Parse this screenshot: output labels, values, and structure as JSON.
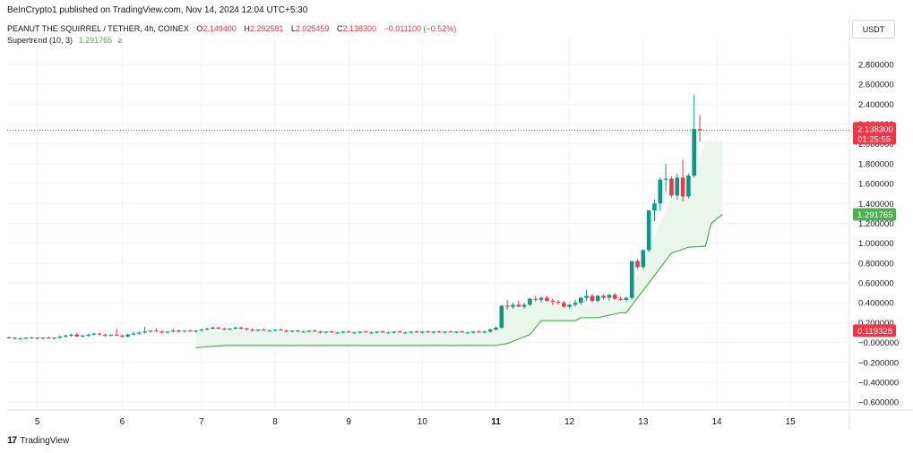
{
  "header": {
    "publish_line": "BeInCrypto1 published on TradingView.com, Nov 14, 2024 12:04 UTC+5:30",
    "symbol": "PEANUT THE SQUIRREL / TETHER, 4h, COINEX",
    "ohlc": [
      {
        "key": "O",
        "value": "2.149400"
      },
      {
        "key": "H",
        "value": "2.292581"
      },
      {
        "key": "L",
        "value": "2.025459"
      },
      {
        "key": "C",
        "value": "2.138300"
      },
      {
        "key": "",
        "value": "−0.011100 (−0.52%)"
      }
    ],
    "indicator_name": "Supertrend (10, 3)",
    "indicator_value": "1.291765",
    "indicator_icon": "visibility-off-icon",
    "currency": "USDT"
  },
  "footer": {
    "brand": "TradingView",
    "logo_text": "17"
  },
  "colors": {
    "up": "#089981",
    "down": "#f23645",
    "supertrend": "#4caf50",
    "supertrend_fill": "#e8f5e9",
    "grid": "#f0f3fa",
    "price_line": "#f23645",
    "low_tag": "#f23645",
    "text": "#131722"
  },
  "chart_data": {
    "type": "candlestick",
    "ylim": [
      -0.68,
      2.98
    ],
    "y_ticks": [
      2.8,
      2.6,
      2.4,
      2.2,
      2.0,
      1.8,
      1.6,
      1.4,
      1.2,
      1.0,
      0.8,
      0.6,
      0.4,
      0.2,
      0.0,
      -0.2,
      -0.4,
      -0.6
    ],
    "y_tick_labels": [
      "2.800000",
      "2.600000",
      "2.400000",
      "2.200000",
      "2.000000",
      "1.800000",
      "1.600000",
      "1.400000",
      "1.200000",
      "1.000000",
      "0.800000",
      "0.600000",
      "0.400000",
      "0.200000",
      "−0.000000",
      "−0.200000",
      "−0.400000",
      "−0.600000"
    ],
    "x_ticks": [
      {
        "label": "5",
        "i": 5,
        "bold": false
      },
      {
        "label": "6",
        "i": 20,
        "bold": false
      },
      {
        "label": "7",
        "i": 34,
        "bold": false
      },
      {
        "label": "8",
        "i": 47,
        "bold": false
      },
      {
        "label": "9",
        "i": 60,
        "bold": false
      },
      {
        "label": "10",
        "i": 73,
        "bold": false
      },
      {
        "label": "11",
        "i": 86,
        "bold": true
      },
      {
        "label": "12",
        "i": 99,
        "bold": false
      },
      {
        "label": "13",
        "i": 112,
        "bold": false
      },
      {
        "label": "14",
        "i": 125,
        "bold": false
      },
      {
        "label": "15",
        "i": 138,
        "bold": false
      }
    ],
    "candles": [
      [
        0.05,
        0.06,
        0.04,
        0.05
      ],
      [
        0.05,
        0.05,
        0.03,
        0.04
      ],
      [
        0.04,
        0.05,
        0.03,
        0.04
      ],
      [
        0.04,
        0.05,
        0.03,
        0.05
      ],
      [
        0.05,
        0.06,
        0.04,
        0.05
      ],
      [
        0.05,
        0.05,
        0.03,
        0.04
      ],
      [
        0.04,
        0.05,
        0.03,
        0.05
      ],
      [
        0.05,
        0.06,
        0.04,
        0.04
      ],
      [
        0.04,
        0.05,
        0.03,
        0.05
      ],
      [
        0.05,
        0.07,
        0.04,
        0.06
      ],
      [
        0.06,
        0.08,
        0.05,
        0.07
      ],
      [
        0.07,
        0.09,
        0.06,
        0.08
      ],
      [
        0.08,
        0.1,
        0.06,
        0.06
      ],
      [
        0.06,
        0.08,
        0.05,
        0.07
      ],
      [
        0.07,
        0.09,
        0.06,
        0.08
      ],
      [
        0.08,
        0.1,
        0.07,
        0.09
      ],
      [
        0.09,
        0.1,
        0.07,
        0.08
      ],
      [
        0.08,
        0.09,
        0.06,
        0.07
      ],
      [
        0.07,
        0.08,
        0.06,
        0.08
      ],
      [
        0.08,
        0.14,
        0.07,
        0.07
      ],
      [
        0.07,
        0.08,
        0.05,
        0.06
      ],
      [
        0.06,
        0.09,
        0.05,
        0.08
      ],
      [
        0.08,
        0.11,
        0.07,
        0.09
      ],
      [
        0.09,
        0.11,
        0.08,
        0.1
      ],
      [
        0.1,
        0.16,
        0.09,
        0.11
      ],
      [
        0.11,
        0.12,
        0.1,
        0.12
      ],
      [
        0.12,
        0.14,
        0.11,
        0.11
      ],
      [
        0.11,
        0.12,
        0.09,
        0.1
      ],
      [
        0.1,
        0.11,
        0.09,
        0.11
      ],
      [
        0.11,
        0.14,
        0.1,
        0.12
      ],
      [
        0.12,
        0.13,
        0.1,
        0.11
      ],
      [
        0.11,
        0.12,
        0.1,
        0.12
      ],
      [
        0.12,
        0.13,
        0.11,
        0.11
      ],
      [
        0.11,
        0.12,
        0.1,
        0.12
      ],
      [
        0.12,
        0.14,
        0.11,
        0.13
      ],
      [
        0.13,
        0.15,
        0.12,
        0.14
      ],
      [
        0.14,
        0.16,
        0.13,
        0.15
      ],
      [
        0.15,
        0.16,
        0.13,
        0.14
      ],
      [
        0.14,
        0.15,
        0.12,
        0.13
      ],
      [
        0.13,
        0.14,
        0.12,
        0.14
      ],
      [
        0.14,
        0.16,
        0.13,
        0.15
      ],
      [
        0.15,
        0.16,
        0.13,
        0.14
      ],
      [
        0.14,
        0.15,
        0.12,
        0.13
      ],
      [
        0.13,
        0.14,
        0.11,
        0.12
      ],
      [
        0.12,
        0.13,
        0.11,
        0.13
      ],
      [
        0.13,
        0.14,
        0.12,
        0.12
      ],
      [
        0.12,
        0.13,
        0.11,
        0.12
      ],
      [
        0.12,
        0.13,
        0.11,
        0.13
      ],
      [
        0.13,
        0.14,
        0.12,
        0.12
      ],
      [
        0.12,
        0.13,
        0.1,
        0.11
      ],
      [
        0.11,
        0.12,
        0.1,
        0.12
      ],
      [
        0.12,
        0.13,
        0.11,
        0.11
      ],
      [
        0.11,
        0.12,
        0.1,
        0.11
      ],
      [
        0.11,
        0.12,
        0.1,
        0.12
      ],
      [
        0.12,
        0.13,
        0.11,
        0.11
      ],
      [
        0.11,
        0.12,
        0.09,
        0.1
      ],
      [
        0.1,
        0.11,
        0.09,
        0.11
      ],
      [
        0.11,
        0.12,
        0.1,
        0.1
      ],
      [
        0.1,
        0.11,
        0.09,
        0.1
      ],
      [
        0.1,
        0.11,
        0.09,
        0.11
      ],
      [
        0.11,
        0.12,
        0.1,
        0.1
      ],
      [
        0.1,
        0.11,
        0.09,
        0.1
      ],
      [
        0.1,
        0.11,
        0.09,
        0.11
      ],
      [
        0.11,
        0.12,
        0.1,
        0.1
      ],
      [
        0.1,
        0.11,
        0.09,
        0.1
      ],
      [
        0.1,
        0.11,
        0.09,
        0.11
      ],
      [
        0.11,
        0.12,
        0.1,
        0.1
      ],
      [
        0.1,
        0.11,
        0.09,
        0.1
      ],
      [
        0.1,
        0.11,
        0.09,
        0.11
      ],
      [
        0.11,
        0.12,
        0.1,
        0.1
      ],
      [
        0.1,
        0.11,
        0.09,
        0.1
      ],
      [
        0.1,
        0.11,
        0.09,
        0.11
      ],
      [
        0.11,
        0.12,
        0.1,
        0.1
      ],
      [
        0.1,
        0.11,
        0.09,
        0.11
      ],
      [
        0.11,
        0.12,
        0.1,
        0.1
      ],
      [
        0.1,
        0.11,
        0.09,
        0.11
      ],
      [
        0.11,
        0.12,
        0.1,
        0.1
      ],
      [
        0.1,
        0.11,
        0.09,
        0.11
      ],
      [
        0.11,
        0.12,
        0.1,
        0.1
      ],
      [
        0.1,
        0.11,
        0.09,
        0.11
      ],
      [
        0.11,
        0.12,
        0.1,
        0.1
      ],
      [
        0.1,
        0.11,
        0.09,
        0.1
      ],
      [
        0.1,
        0.11,
        0.09,
        0.11
      ],
      [
        0.11,
        0.12,
        0.1,
        0.1
      ],
      [
        0.1,
        0.12,
        0.09,
        0.11
      ],
      [
        0.11,
        0.14,
        0.1,
        0.13
      ],
      [
        0.13,
        0.16,
        0.12,
        0.15
      ],
      [
        0.15,
        0.38,
        0.14,
        0.37
      ],
      [
        0.37,
        0.43,
        0.33,
        0.36
      ],
      [
        0.36,
        0.4,
        0.34,
        0.38
      ],
      [
        0.38,
        0.42,
        0.36,
        0.36
      ],
      [
        0.36,
        0.4,
        0.34,
        0.38
      ],
      [
        0.38,
        0.45,
        0.37,
        0.44
      ],
      [
        0.44,
        0.47,
        0.41,
        0.43
      ],
      [
        0.43,
        0.46,
        0.4,
        0.45
      ],
      [
        0.45,
        0.47,
        0.41,
        0.42
      ],
      [
        0.42,
        0.44,
        0.38,
        0.41
      ],
      [
        0.41,
        0.43,
        0.38,
        0.4
      ],
      [
        0.4,
        0.42,
        0.35,
        0.36
      ],
      [
        0.36,
        0.39,
        0.34,
        0.38
      ],
      [
        0.38,
        0.43,
        0.36,
        0.4
      ],
      [
        0.4,
        0.46,
        0.38,
        0.45
      ],
      [
        0.45,
        0.53,
        0.42,
        0.47
      ],
      [
        0.47,
        0.49,
        0.4,
        0.42
      ],
      [
        0.42,
        0.48,
        0.4,
        0.47
      ],
      [
        0.47,
        0.49,
        0.43,
        0.45
      ],
      [
        0.45,
        0.49,
        0.42,
        0.48
      ],
      [
        0.48,
        0.5,
        0.43,
        0.44
      ],
      [
        0.44,
        0.46,
        0.42,
        0.43
      ],
      [
        0.43,
        0.46,
        0.41,
        0.45
      ],
      [
        0.45,
        0.82,
        0.43,
        0.82
      ],
      [
        0.82,
        0.84,
        0.74,
        0.76
      ],
      [
        0.76,
        0.94,
        0.74,
        0.93
      ],
      [
        0.93,
        1.33,
        0.91,
        1.33
      ],
      [
        1.33,
        1.44,
        1.22,
        1.4
      ],
      [
        1.4,
        1.66,
        1.33,
        1.64
      ],
      [
        1.64,
        1.8,
        1.52,
        1.65
      ],
      [
        1.65,
        1.67,
        1.46,
        1.48
      ],
      [
        1.48,
        1.7,
        1.44,
        1.66
      ],
      [
        1.66,
        1.84,
        1.42,
        1.47
      ],
      [
        1.47,
        1.7,
        1.45,
        1.68
      ],
      [
        1.68,
        2.49,
        1.66,
        2.15
      ],
      [
        2.1494,
        2.292581,
        2.025459,
        2.1383
      ]
    ],
    "supertrend": [
      [
        33,
        -0.052
      ],
      [
        34,
        -0.047
      ],
      [
        38,
        -0.03
      ],
      [
        86,
        -0.03
      ],
      [
        88,
        -0.01
      ],
      [
        92,
        0.08
      ],
      [
        94,
        0.22
      ],
      [
        100,
        0.22
      ],
      [
        101,
        0.25
      ],
      [
        104,
        0.25
      ],
      [
        108,
        0.3
      ],
      [
        109,
        0.3
      ],
      [
        117,
        0.9
      ],
      [
        120,
        0.96
      ],
      [
        123,
        0.97
      ],
      [
        124,
        1.2
      ],
      [
        126,
        1.29
      ]
    ],
    "last_price": 2.1383,
    "last_price_label": "2.138300",
    "countdown": "01:25:55",
    "supertrend_tag": "1.291765",
    "low_tag": "0.119328",
    "low_tag_value": 0.119328
  }
}
